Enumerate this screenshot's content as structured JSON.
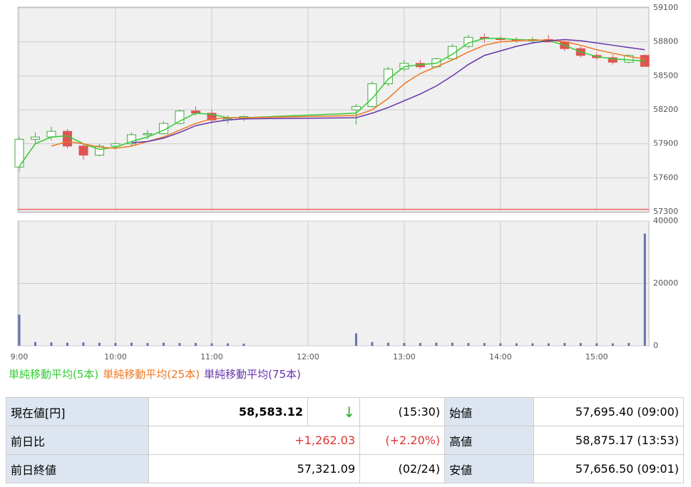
{
  "chart_data": {
    "type": "candlestick",
    "x": [
      "9:00",
      "9:10",
      "9:20",
      "9:30",
      "9:40",
      "9:50",
      "10:00",
      "10:10",
      "10:20",
      "10:30",
      "10:40",
      "10:50",
      "11:00",
      "11:10",
      "11:20",
      "12:30",
      "12:40",
      "12:50",
      "13:00",
      "13:10",
      "13:20",
      "13:30",
      "13:40",
      "13:50",
      "14:00",
      "14:10",
      "14:20",
      "14:30",
      "14:40",
      "14:50",
      "15:00",
      "15:10",
      "15:20",
      "15:30"
    ],
    "open": [
      57695,
      57940,
      57960,
      58010,
      57880,
      57800,
      57880,
      57900,
      57980,
      57990,
      58080,
      58190,
      58170,
      58110,
      58120,
      58200,
      58230,
      58430,
      58560,
      58610,
      58580,
      58650,
      58760,
      58840,
      58830,
      58820,
      58810,
      58820,
      58800,
      58740,
      58680,
      58660,
      58620,
      58680
    ],
    "high": [
      57960,
      58000,
      58050,
      58030,
      57900,
      57900,
      57920,
      58000,
      58020,
      58100,
      58200,
      58230,
      58200,
      58150,
      58150,
      58250,
      58450,
      58580,
      58640,
      58640,
      58660,
      58780,
      58860,
      58875,
      58850,
      58840,
      58840,
      58860,
      58810,
      58760,
      58700,
      58690,
      58690,
      58690
    ],
    "low": [
      57656,
      57900,
      57930,
      57860,
      57760,
      57790,
      57850,
      57880,
      57940,
      57980,
      58070,
      58150,
      58080,
      58080,
      58100,
      58070,
      58220,
      58410,
      58540,
      58560,
      58570,
      58640,
      58740,
      58790,
      58800,
      58790,
      58790,
      58790,
      58720,
      58660,
      58640,
      58600,
      58610,
      58583
    ],
    "close": [
      57940,
      57960,
      58010,
      57880,
      57800,
      57880,
      57900,
      57980,
      57990,
      58080,
      58190,
      58170,
      58110,
      58120,
      58140,
      58230,
      58430,
      58560,
      58610,
      58580,
      58650,
      58760,
      58840,
      58830,
      58820,
      58810,
      58820,
      58800,
      58740,
      58680,
      58660,
      58620,
      58680,
      58583
    ],
    "series": [
      {
        "name": "単純移動平均(5本)",
        "color": "#33cc33",
        "values": [
          57700,
          57900,
          57960,
          57970,
          57900,
          57850,
          57870,
          57920,
          57960,
          58020,
          58100,
          58170,
          58160,
          58130,
          58130,
          58170,
          58300,
          58470,
          58580,
          58600,
          58610,
          58690,
          58790,
          58830,
          58830,
          58820,
          58815,
          58810,
          58770,
          58710,
          58670,
          58650,
          58640,
          58630
        ]
      },
      {
        "name": "単純移動平均(25本)",
        "color": "#ee7722",
        "values": [
          null,
          null,
          57880,
          57920,
          57900,
          57870,
          57860,
          57880,
          57920,
          57960,
          58020,
          58080,
          58120,
          58130,
          58130,
          58150,
          58200,
          58300,
          58430,
          58520,
          58580,
          58640,
          58710,
          58770,
          58800,
          58810,
          58815,
          58815,
          58800,
          58770,
          58730,
          58700,
          58670,
          58650
        ]
      },
      {
        "name": "単純移動平均(75本)",
        "color": "#6633aa",
        "values": [
          null,
          null,
          null,
          null,
          null,
          null,
          null,
          57910,
          57920,
          57950,
          58000,
          58060,
          58090,
          58110,
          58120,
          58130,
          58170,
          58220,
          58280,
          58340,
          58410,
          58500,
          58600,
          58680,
          58720,
          58760,
          58790,
          58810,
          58820,
          58810,
          58790,
          58770,
          58750,
          58730
        ]
      }
    ],
    "volume": [
      10000,
      1200,
      1100,
      1000,
      1100,
      1000,
      900,
      1000,
      900,
      1000,
      900,
      900,
      800,
      800,
      700,
      4000,
      1200,
      1000,
      900,
      900,
      1000,
      1000,
      900,
      900,
      800,
      800,
      800,
      800,
      900,
      900,
      800,
      800,
      900,
      36000
    ],
    "volume_color": "#6670b0",
    "reference_line": 57321.09,
    "reference_color": "#ee6666",
    "xlim": [
      "9:00",
      "15:33"
    ],
    "xticks": [
      "9:00",
      "10:00",
      "11:00",
      "12:00",
      "13:00",
      "14:00",
      "15:00"
    ],
    "ylim": [
      57300,
      59100
    ],
    "yticks": [
      57300,
      57600,
      57900,
      58200,
      58500,
      58800,
      59100
    ],
    "volume_ylim": [
      0,
      40000
    ],
    "volume_yticks": [
      0,
      20000,
      40000
    ],
    "grid": true,
    "up_color": "#44aa44",
    "down_color": "#dd5555"
  },
  "table": {
    "rows": [
      [
        "現在値[円]",
        "58,583.12",
        "↓",
        "(15:30)",
        "始値",
        "57,695.40 (09:00)"
      ],
      [
        "前日比",
        "+1,262.03",
        "(+2.20%)",
        "高値",
        "58,875.17 (13:53)"
      ],
      [
        "前日終値",
        "57,321.09",
        "(02/24)",
        "安値",
        "57,656.50 (09:01)"
      ]
    ]
  }
}
